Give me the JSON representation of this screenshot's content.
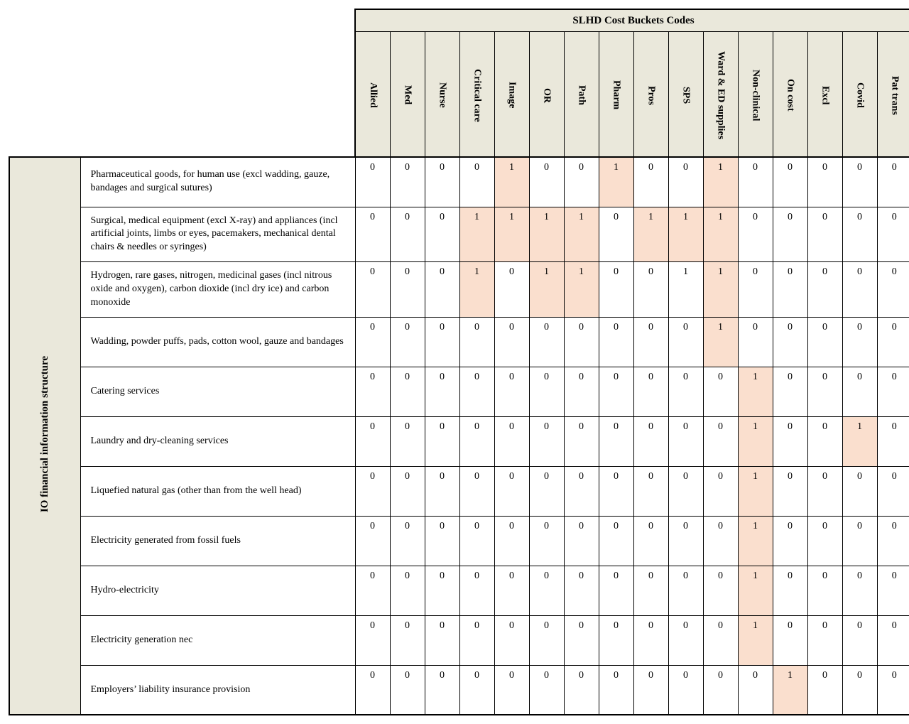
{
  "table": {
    "type": "matrix-table",
    "background_color": "#ffffff",
    "header_bg": "#eae8db",
    "highlight_bg": "#fadfce",
    "border_color": "#000000",
    "text_color": "#000000",
    "font_family": "Times New Roman",
    "super_header": "SLHD Cost Buckets Codes",
    "vertical_label": "IO financial information structure",
    "columns": [
      "Allied",
      "Med",
      "Nurse",
      "Critical care",
      "Image",
      "OR",
      "Path",
      "Pharm",
      "Pros",
      "SPS",
      "Ward & ED supplies",
      "Non-clinical",
      "On cost",
      "Excl",
      "Covid",
      "Pat trans"
    ],
    "rows": [
      {
        "label": "Pharmaceutical goods, for human use (excl wadding, gauze, bandages and surgical sutures)",
        "values": [
          0,
          0,
          0,
          0,
          1,
          0,
          0,
          1,
          0,
          0,
          1,
          0,
          0,
          0,
          0,
          0
        ],
        "highlight": [
          0,
          0,
          0,
          0,
          1,
          0,
          0,
          1,
          0,
          0,
          1,
          0,
          0,
          0,
          0,
          0
        ]
      },
      {
        "label": "Surgical, medical equipment (excl X-ray) and appliances (incl artificial joints, limbs or eyes, pacemakers, mechanical dental chairs & needles or syringes)",
        "values": [
          0,
          0,
          0,
          1,
          1,
          1,
          1,
          0,
          1,
          1,
          1,
          0,
          0,
          0,
          0,
          0
        ],
        "highlight": [
          0,
          0,
          0,
          1,
          1,
          1,
          1,
          0,
          1,
          1,
          1,
          0,
          0,
          0,
          0,
          0
        ]
      },
      {
        "label": "Hydrogen, rare gases, nitrogen, medicinal gases (incl nitrous oxide and oxygen), carbon dioxide (incl dry ice) and carbon monoxide",
        "values": [
          0,
          0,
          0,
          1,
          0,
          1,
          1,
          0,
          0,
          1,
          1,
          0,
          0,
          0,
          0,
          0
        ],
        "highlight": [
          0,
          0,
          0,
          1,
          0,
          1,
          1,
          0,
          0,
          0,
          1,
          0,
          0,
          0,
          0,
          0
        ]
      },
      {
        "label": "Wadding, powder puffs, pads, cotton wool, gauze and bandages",
        "values": [
          0,
          0,
          0,
          0,
          0,
          0,
          0,
          0,
          0,
          0,
          1,
          0,
          0,
          0,
          0,
          0
        ],
        "highlight": [
          0,
          0,
          0,
          0,
          0,
          0,
          0,
          0,
          0,
          0,
          1,
          0,
          0,
          0,
          0,
          0
        ]
      },
      {
        "label": "Catering services",
        "values": [
          0,
          0,
          0,
          0,
          0,
          0,
          0,
          0,
          0,
          0,
          0,
          1,
          0,
          0,
          0,
          0
        ],
        "highlight": [
          0,
          0,
          0,
          0,
          0,
          0,
          0,
          0,
          0,
          0,
          0,
          1,
          0,
          0,
          0,
          0
        ]
      },
      {
        "label": "Laundry and dry-cleaning services",
        "values": [
          0,
          0,
          0,
          0,
          0,
          0,
          0,
          0,
          0,
          0,
          0,
          1,
          0,
          0,
          1,
          0
        ],
        "highlight": [
          0,
          0,
          0,
          0,
          0,
          0,
          0,
          0,
          0,
          0,
          0,
          1,
          0,
          0,
          1,
          0
        ]
      },
      {
        "label": "Liquefied natural gas (other than from the well head)",
        "values": [
          0,
          0,
          0,
          0,
          0,
          0,
          0,
          0,
          0,
          0,
          0,
          1,
          0,
          0,
          0,
          0
        ],
        "highlight": [
          0,
          0,
          0,
          0,
          0,
          0,
          0,
          0,
          0,
          0,
          0,
          1,
          0,
          0,
          0,
          0
        ]
      },
      {
        "label": "Electricity generated from fossil fuels",
        "values": [
          0,
          0,
          0,
          0,
          0,
          0,
          0,
          0,
          0,
          0,
          0,
          1,
          0,
          0,
          0,
          0
        ],
        "highlight": [
          0,
          0,
          0,
          0,
          0,
          0,
          0,
          0,
          0,
          0,
          0,
          1,
          0,
          0,
          0,
          0
        ]
      },
      {
        "label": "Hydro-electricity",
        "values": [
          0,
          0,
          0,
          0,
          0,
          0,
          0,
          0,
          0,
          0,
          0,
          1,
          0,
          0,
          0,
          0
        ],
        "highlight": [
          0,
          0,
          0,
          0,
          0,
          0,
          0,
          0,
          0,
          0,
          0,
          1,
          0,
          0,
          0,
          0
        ]
      },
      {
        "label": "Electricity generation nec",
        "values": [
          0,
          0,
          0,
          0,
          0,
          0,
          0,
          0,
          0,
          0,
          0,
          1,
          0,
          0,
          0,
          0
        ],
        "highlight": [
          0,
          0,
          0,
          0,
          0,
          0,
          0,
          0,
          0,
          0,
          0,
          1,
          0,
          0,
          0,
          0
        ]
      },
      {
        "label": "Employers’ liability insurance provision",
        "values": [
          0,
          0,
          0,
          0,
          0,
          0,
          0,
          0,
          0,
          0,
          0,
          0,
          1,
          0,
          0,
          0
        ],
        "highlight": [
          0,
          0,
          0,
          0,
          0,
          0,
          0,
          0,
          0,
          0,
          0,
          0,
          1,
          0,
          0,
          0
        ]
      }
    ]
  }
}
